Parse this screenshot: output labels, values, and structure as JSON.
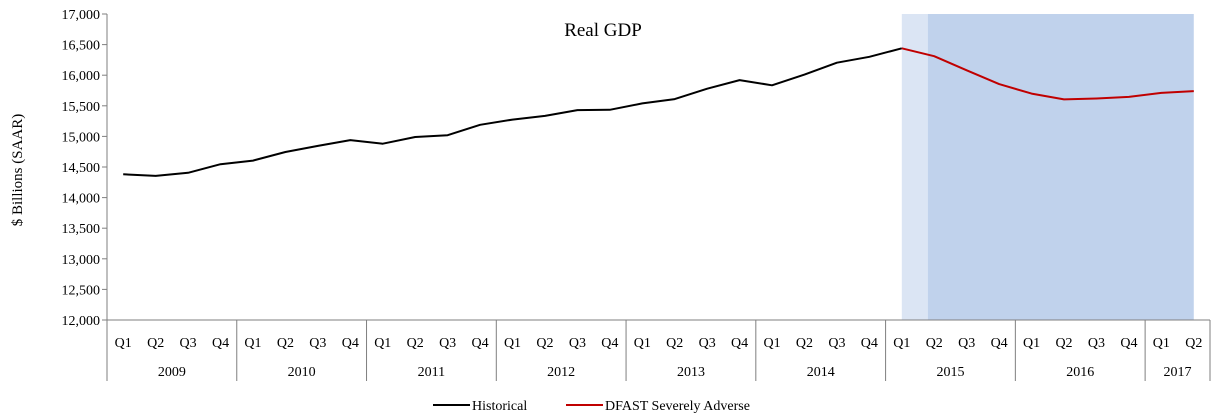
{
  "chart_data": {
    "type": "line",
    "title": "Real GDP",
    "ylabel": "$ Billions (SAAR)",
    "xlabel": "",
    "ylim": [
      12000,
      17000
    ],
    "yticks": [
      "12,000",
      "12,500",
      "13,000",
      "13,500",
      "14,000",
      "14,500",
      "15,000",
      "15,500",
      "16,000",
      "16,500",
      "17,000"
    ],
    "quarters": [
      "Q1",
      "Q2",
      "Q3",
      "Q4",
      "Q1",
      "Q2",
      "Q3",
      "Q4",
      "Q1",
      "Q2",
      "Q3",
      "Q4",
      "Q1",
      "Q2",
      "Q3",
      "Q4",
      "Q1",
      "Q2",
      "Q3",
      "Q4",
      "Q1",
      "Q2",
      "Q3",
      "Q4",
      "Q1",
      "Q2",
      "Q3",
      "Q4",
      "Q1",
      "Q2",
      "Q3",
      "Q4",
      "Q1",
      "Q2"
    ],
    "years": [
      {
        "label": "2009",
        "span": 4
      },
      {
        "label": "2010",
        "span": 4
      },
      {
        "label": "2011",
        "span": 4
      },
      {
        "label": "2012",
        "span": 4
      },
      {
        "label": "2013",
        "span": 4
      },
      {
        "label": "2014",
        "span": 4
      },
      {
        "label": "2015",
        "span": 4
      },
      {
        "label": "2016",
        "span": 4
      },
      {
        "label": "2017",
        "span": 2
      }
    ],
    "shading": [
      {
        "from_index": 24.5,
        "to_index": 25.3,
        "color": "#dbe5f4"
      },
      {
        "from_index": 25.3,
        "to_index": 33.5,
        "color": "#c0d2ec"
      }
    ],
    "series": [
      {
        "name": "Historical",
        "color": "#000000",
        "start_index": 0,
        "values": [
          14380,
          14355,
          14405,
          14545,
          14605,
          14745,
          14845,
          14940,
          14880,
          14990,
          15020,
          15190,
          15275,
          15335,
          15430,
          15435,
          15540,
          15610,
          15780,
          15920,
          15835,
          16010,
          16205,
          16300,
          16440
        ]
      },
      {
        "name": "DFAST Severely Adverse",
        "color": "#c00000",
        "start_index": 24,
        "values": [
          16440,
          16310,
          16080,
          15855,
          15700,
          15605,
          15620,
          15645,
          15710,
          15740
        ]
      }
    ],
    "legend_position": "bottom-center",
    "grid": false
  }
}
